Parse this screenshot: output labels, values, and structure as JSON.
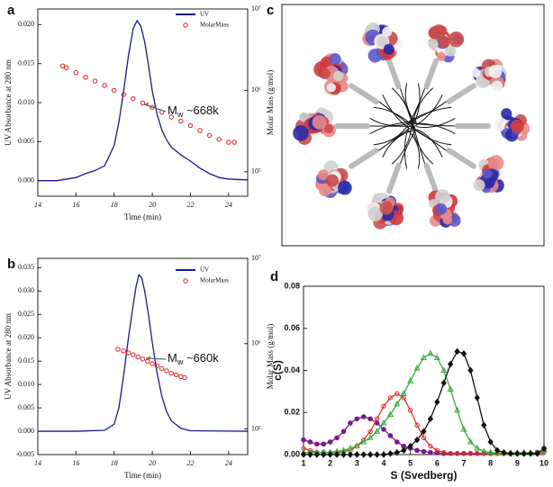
{
  "chart_data": [
    {
      "type": "line",
      "label": "a",
      "xlabel": "Time (min)",
      "ylabel": "UV Absorbance at 280 nm",
      "y2label": "Molar Mass (g/mol)",
      "xlim": [
        14,
        25
      ],
      "xticks": [
        14,
        16,
        18,
        20,
        22,
        24
      ],
      "ylim": [
        -0.002,
        0.022
      ],
      "yticks": [
        {
          "value": 0,
          "label": "0.000"
        },
        {
          "value": 0.005,
          "label": "0.005"
        },
        {
          "value": 0.01,
          "label": "0.010"
        },
        {
          "value": 0.015,
          "label": "0.015"
        },
        {
          "value": 0.02,
          "label": "0.020"
        }
      ],
      "y2lim": [
        50000,
        10000000
      ],
      "y2log": true,
      "y2ticks": [
        {
          "value": 100000,
          "label": "10⁵"
        },
        {
          "value": 1000000,
          "label": "10⁶"
        },
        {
          "value": 10000000,
          "label": "10⁷"
        }
      ],
      "legend": "upper right",
      "annotation": {
        "main": "M",
        "sub": "w",
        "rest": " ~668k"
      },
      "series": [
        {
          "name": "UV",
          "color": "#1a1a8c",
          "line": true,
          "x": [
            14,
            15,
            16,
            16.5,
            17,
            17.5,
            18,
            18.25,
            18.5,
            18.75,
            19,
            19.2,
            19.4,
            19.6,
            19.8,
            20,
            20.25,
            20.5,
            20.75,
            21,
            21.5,
            22,
            22.5,
            23,
            23.5,
            24,
            25
          ],
          "values": [
            0,
            0,
            0.0004,
            0.0009,
            0.0013,
            0.0019,
            0.0045,
            0.0075,
            0.0115,
            0.016,
            0.0195,
            0.0205,
            0.0198,
            0.0178,
            0.0148,
            0.0115,
            0.0085,
            0.0065,
            0.0052,
            0.0043,
            0.0033,
            0.0025,
            0.0016,
            0.0009,
            0.0004,
            0.0002,
            0.0001
          ]
        },
        {
          "name": "MolarMass",
          "color": "#e0201a",
          "line": false,
          "marker": "circle-open",
          "axis": "y2",
          "x": [
            15.3,
            15.5,
            16,
            16.5,
            17,
            17.5,
            18,
            18.5,
            19,
            19.5,
            20,
            20.5,
            21,
            21.5,
            22,
            22.5,
            23,
            23.5,
            24,
            24.3
          ],
          "values": [
            2000000,
            1900000,
            1650000,
            1450000,
            1300000,
            1150000,
            1000000,
            890000,
            790000,
            700000,
            620000,
            540000,
            470000,
            420000,
            370000,
            320000,
            280000,
            250000,
            230000,
            230000
          ]
        }
      ]
    },
    {
      "type": "line",
      "label": "b",
      "xlabel": "Time (min)",
      "ylabel": "UV Absorbance at 280 nm",
      "y2label": "Molar Mass (g/mol)",
      "xlim": [
        14,
        25
      ],
      "xticks": [
        14,
        16,
        18,
        20,
        22,
        24
      ],
      "ylim": [
        -0.005,
        0.037
      ],
      "yticks": [
        {
          "value": -0.005,
          "label": "-0.005"
        },
        {
          "value": 0,
          "label": "0.000"
        },
        {
          "value": 0.005,
          "label": "0.005"
        },
        {
          "value": 0.01,
          "label": "0.010"
        },
        {
          "value": 0.015,
          "label": "0.015"
        },
        {
          "value": 0.02,
          "label": "0.020"
        },
        {
          "value": 0.025,
          "label": "0.025"
        },
        {
          "value": 0.03,
          "label": "0.030"
        },
        {
          "value": 0.035,
          "label": "0.035"
        }
      ],
      "y2lim": [
        50000,
        10000000
      ],
      "y2log": true,
      "y2ticks": [
        {
          "value": 100000,
          "label": "10⁵"
        },
        {
          "value": 1000000,
          "label": "10⁶"
        },
        {
          "value": 10000000,
          "label": "10⁷"
        }
      ],
      "legend": "upper right",
      "annotation": {
        "main": "M",
        "sub": "w",
        "rest": " ~660k"
      },
      "series": [
        {
          "name": "UV",
          "color": "#1a1a8c",
          "line": true,
          "x": [
            14,
            16,
            17.5,
            18,
            18.25,
            18.5,
            18.75,
            19,
            19.15,
            19.3,
            19.45,
            19.6,
            19.8,
            20,
            20.25,
            20.5,
            20.75,
            21,
            21.5,
            22,
            25
          ],
          "values": [
            0,
            0,
            0.0002,
            0.0015,
            0.005,
            0.012,
            0.02,
            0.027,
            0.031,
            0.0335,
            0.0328,
            0.03,
            0.025,
            0.019,
            0.0125,
            0.0075,
            0.0042,
            0.0022,
            0.0006,
            0.0001,
            0
          ]
        },
        {
          "name": "MolarMass",
          "color": "#e0201a",
          "line": false,
          "marker": "circle-open",
          "axis": "y2",
          "x": [
            18.2,
            18.5,
            18.75,
            19,
            19.25,
            19.5,
            19.75,
            20,
            20.25,
            20.5,
            20.75,
            21,
            21.25,
            21.5,
            21.7
          ],
          "values": [
            860000,
            820000,
            780000,
            740000,
            700000,
            660000,
            620000,
            580000,
            550000,
            510000,
            480000,
            450000,
            430000,
            410000,
            400000
          ]
        }
      ]
    },
    {
      "type": "line",
      "label": "d",
      "xlabel": "S (Svedberg)",
      "ylabel": "c(S)",
      "xlim": [
        1,
        10
      ],
      "xticks": [
        1,
        2,
        3,
        4,
        5,
        6,
        7,
        8,
        9,
        10
      ],
      "ylim": [
        0,
        0.08
      ],
      "yticks": [
        {
          "value": 0,
          "label": "0.00"
        },
        {
          "value": 0.02,
          "label": "0.02"
        },
        {
          "value": 0.04,
          "label": "0.04"
        },
        {
          "value": 0.06,
          "label": "0.06"
        },
        {
          "value": 0.08,
          "label": "0.08"
        }
      ],
      "x": [
        1,
        1.25,
        1.5,
        1.75,
        2,
        2.25,
        2.5,
        2.75,
        3,
        3.25,
        3.5,
        3.75,
        4,
        4.25,
        4.5,
        4.75,
        5,
        5.25,
        5.5,
        5.75,
        6,
        6.25,
        6.5,
        6.75,
        7,
        7.25,
        7.5,
        7.75,
        8,
        8.25,
        8.5,
        8.75,
        9,
        9.25,
        9.5,
        9.75,
        10
      ],
      "series": [
        {
          "color": "#7a1a8c",
          "line": true,
          "marker": "circle",
          "values": [
            0.007,
            0.006,
            0.005,
            0.005,
            0.006,
            0.008,
            0.011,
            0.015,
            0.017,
            0.018,
            0.017,
            0.015,
            0.012,
            0.009,
            0.006,
            0.004,
            0.003,
            0.002,
            0.0015,
            0.001,
            0.0008,
            0.0005,
            0.0005,
            0.0005,
            0.0005,
            0.0005,
            0.0005,
            0.0005,
            0.0005,
            0.0005,
            0.0005,
            0.0005,
            0.0005,
            0.0005,
            0.0005,
            0.001,
            0.002
          ]
        },
        {
          "color": "#e0302a",
          "line": true,
          "marker": "circle-open",
          "values": [
            0.003,
            0.002,
            0.001,
            0.001,
            0.0008,
            0.001,
            0.0015,
            0.002,
            0.004,
            0.007,
            0.011,
            0.017,
            0.023,
            0.027,
            0.029,
            0.027,
            0.021,
            0.014,
            0.008,
            0.004,
            0.002,
            0.001,
            0.0005,
            0.0005,
            0.0005,
            0.0005,
            0.0005,
            0.0005,
            0.0005,
            0.0005,
            0.0005,
            0.0005,
            0.0005,
            0.0005,
            0.0005,
            0.0005,
            0.001
          ]
        },
        {
          "color": "#3aaa3a",
          "line": true,
          "marker": "triangle-open",
          "values": [
            0.001,
            0.001,
            0.001,
            0.001,
            0.001,
            0.0015,
            0.002,
            0.003,
            0.004,
            0.006,
            0.008,
            0.011,
            0.015,
            0.019,
            0.024,
            0.029,
            0.035,
            0.041,
            0.046,
            0.048,
            0.046,
            0.04,
            0.031,
            0.021,
            0.012,
            0.006,
            0.003,
            0.0015,
            0.001,
            0.0008,
            0.0008,
            0.0008,
            0.0008,
            0.0008,
            0.0008,
            0.0008,
            0.002
          ]
        },
        {
          "color": "#111111",
          "line": true,
          "marker": "diamond",
          "values": [
            0,
            0,
            0,
            0,
            0,
            0,
            0,
            0,
            0,
            0,
            0,
            0,
            0,
            0.0005,
            0.001,
            0.002,
            0.004,
            0.007,
            0.011,
            0.017,
            0.025,
            0.034,
            0.043,
            0.049,
            0.048,
            0.04,
            0.027,
            0.014,
            0.006,
            0.002,
            0.001,
            0.0005,
            0.0005,
            0.0005,
            0.0005,
            0.0005,
            0.003
          ]
        }
      ]
    }
  ],
  "panel_c": {
    "label": "c"
  }
}
